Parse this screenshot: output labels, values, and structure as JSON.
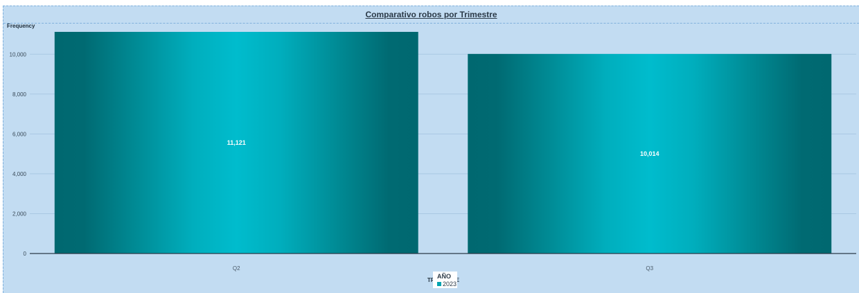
{
  "chart_title": "Comparativo robos por Trimestre",
  "chart_data": {
    "type": "bar",
    "title": "Comparativo robos por Trimestre",
    "categories": [
      "Q2",
      "Q3"
    ],
    "series": [
      {
        "name": "2023",
        "values": [
          11121,
          10014
        ]
      }
    ],
    "data_labels": [
      "11,121",
      "10,014"
    ],
    "xlabel": "TRIMESTRE",
    "ylabel": "Frequency",
    "ylim": [
      0,
      11121
    ],
    "yticks": [
      0,
      2000,
      4000,
      6000,
      8000,
      10000
    ],
    "ytick_labels": [
      "0",
      "2,000",
      "4,000",
      "6,000",
      "8,000",
      "10,000"
    ],
    "grid": true,
    "legend": {
      "title": "AÑO",
      "placement": "bottom-center"
    },
    "colors": {
      "bar_dark": "#006a72",
      "bar_light": "#00bccd",
      "background": "#c2dcf2"
    }
  }
}
